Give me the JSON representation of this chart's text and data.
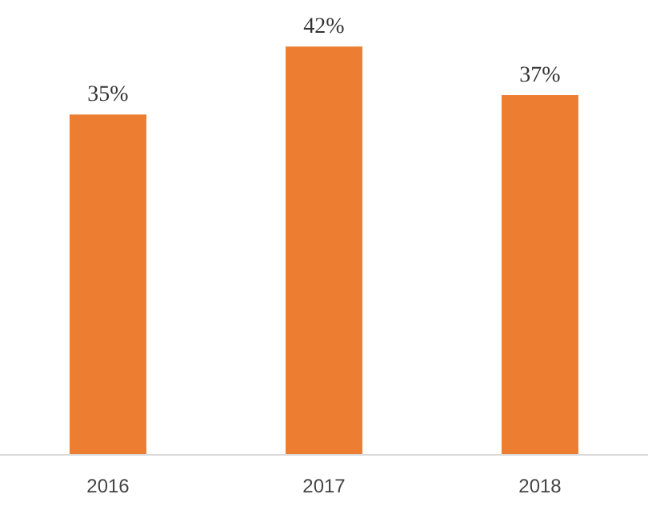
{
  "chart_data": {
    "type": "bar",
    "categories": [
      "2016",
      "2017",
      "2018"
    ],
    "values": [
      35,
      42,
      37
    ],
    "value_labels": [
      "35%",
      "42%",
      "37%"
    ],
    "color": "#ed7d31"
  }
}
